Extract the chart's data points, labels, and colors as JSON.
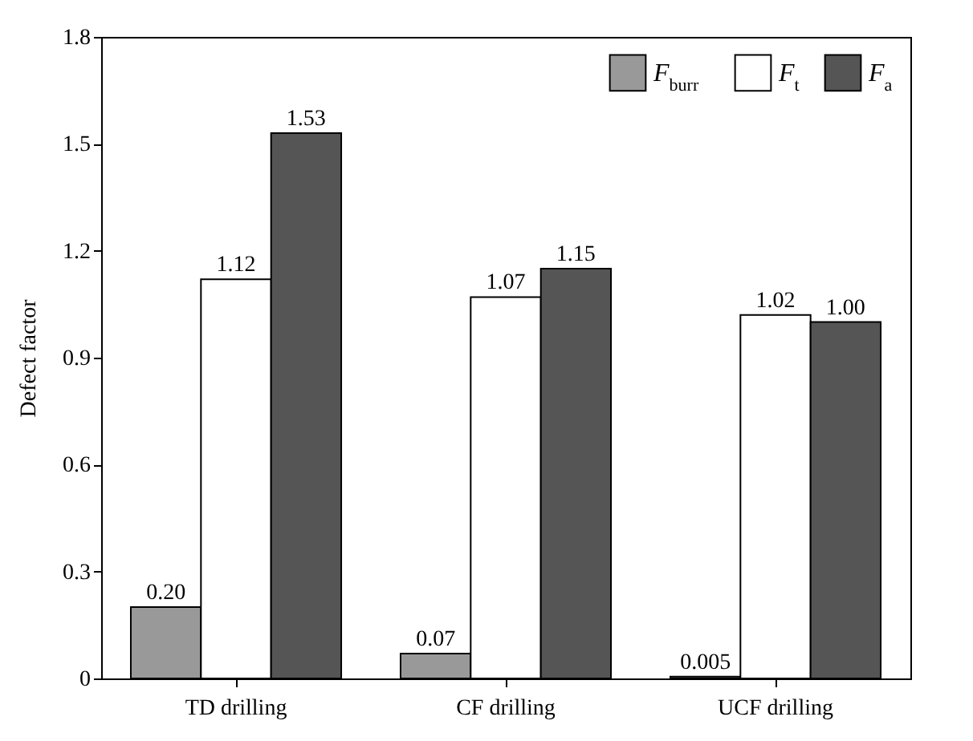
{
  "chart_data": {
    "type": "bar",
    "ylabel": "Defect factor",
    "categories": [
      "TD drilling",
      "CF drilling",
      "UCF drilling"
    ],
    "series": [
      {
        "name": "F$_{burr}$",
        "color": "#999999",
        "values": [
          0.2,
          0.07,
          0.005
        ],
        "value_labels": [
          "0.20",
          "0.07",
          "0.005"
        ]
      },
      {
        "name": "F$_{t}$",
        "color": "#ffffff",
        "values": [
          1.12,
          1.07,
          1.02
        ],
        "value_labels": [
          "1.12",
          "1.07",
          "1.02"
        ]
      },
      {
        "name": "F$_{a}$",
        "color": "#555555",
        "values": [
          1.53,
          1.15,
          1.0
        ],
        "value_labels": [
          "1.53",
          "1.15",
          "1.00"
        ]
      }
    ],
    "ylim": [
      0,
      1.8
    ],
    "yticks": [
      0,
      0.3,
      0.6,
      0.9,
      1.2,
      1.5,
      1.8
    ],
    "legend": "top right"
  }
}
